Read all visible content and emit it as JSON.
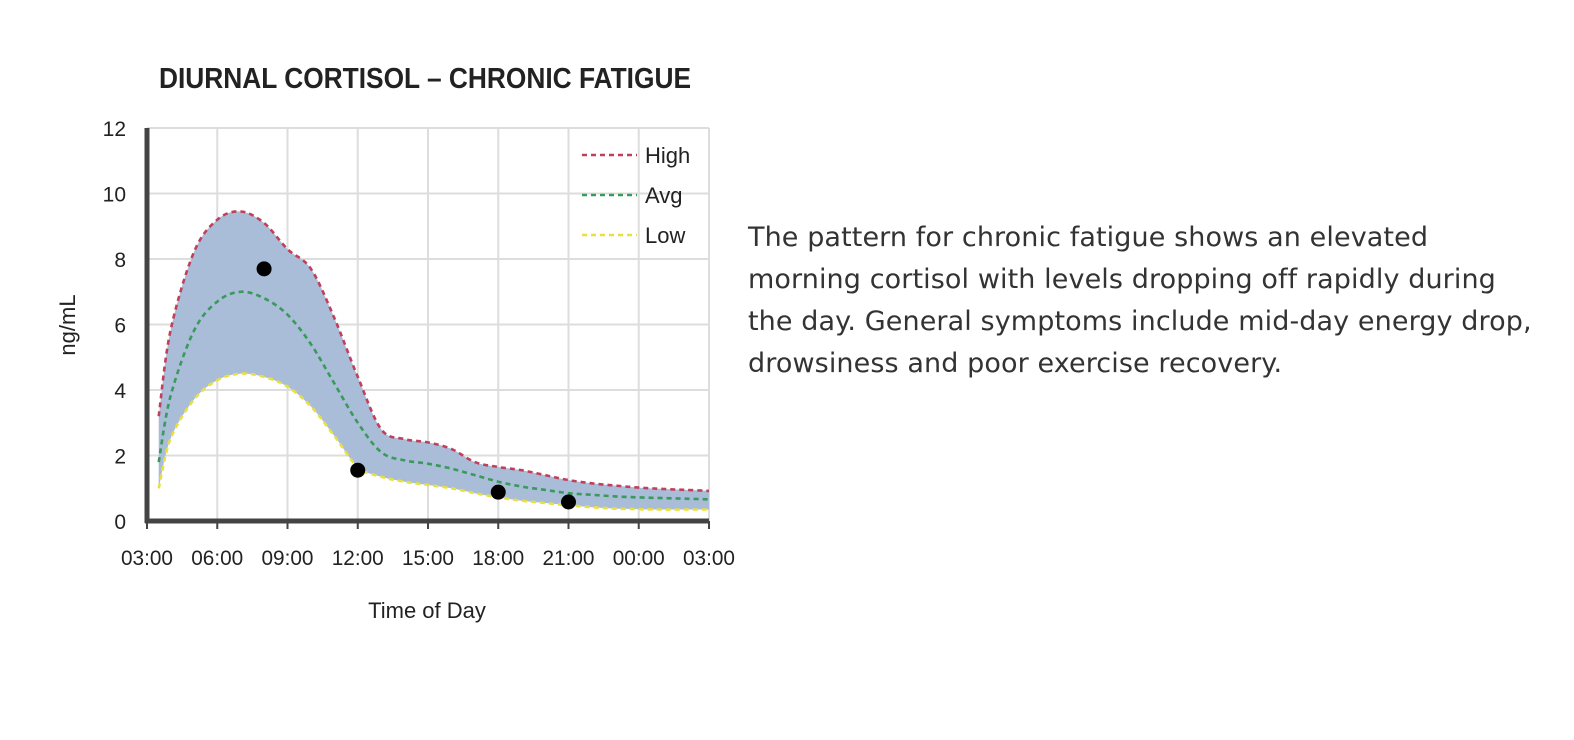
{
  "chart_data": {
    "type": "area",
    "title": "DIURNAL CORTISOL – CHRONIC FATIGUE",
    "xlabel": "Time of Day",
    "ylabel": "ng/mL",
    "x_ticks": [
      "03:00",
      "06:00",
      "09:00",
      "12:00",
      "15:00",
      "18:00",
      "21:00",
      "00:00",
      "03:00"
    ],
    "y_ticks": [
      0,
      2,
      4,
      6,
      8,
      10,
      12
    ],
    "ylim": [
      0,
      12
    ],
    "xlim_hours": [
      3,
      27
    ],
    "grid": true,
    "legend_position": "top-right",
    "band_color": "#a9bcd8",
    "series": [
      {
        "name": "High",
        "color": "#c0405a",
        "style": "dashed",
        "x_hours": [
          3.5,
          4,
          5,
          6,
          7,
          8,
          9,
          10,
          11,
          12,
          13,
          14,
          15,
          16,
          17,
          18,
          19,
          20,
          21,
          22,
          23,
          24,
          25,
          26,
          27
        ],
        "values": [
          3.2,
          5.8,
          8.2,
          9.2,
          9.45,
          9.1,
          8.3,
          7.7,
          6.2,
          4.4,
          2.8,
          2.5,
          2.4,
          2.2,
          1.8,
          1.65,
          1.55,
          1.4,
          1.25,
          1.15,
          1.08,
          1.02,
          0.98,
          0.95,
          0.92
        ]
      },
      {
        "name": "Avg",
        "color": "#3a9a5a",
        "style": "dashed",
        "x_hours": [
          3.5,
          4,
          5,
          6,
          7,
          8,
          9,
          10,
          11,
          12,
          13,
          14,
          15,
          16,
          17,
          18,
          19,
          20,
          21,
          22,
          23,
          24,
          25,
          26,
          27
        ],
        "values": [
          1.8,
          3.8,
          5.8,
          6.7,
          7.0,
          6.8,
          6.3,
          5.4,
          4.2,
          3.0,
          2.1,
          1.85,
          1.75,
          1.6,
          1.4,
          1.2,
          1.05,
          0.95,
          0.85,
          0.8,
          0.75,
          0.72,
          0.7,
          0.68,
          0.66
        ]
      },
      {
        "name": "Low",
        "color": "#e8e040",
        "style": "dashed",
        "x_hours": [
          3.5,
          4,
          5,
          6,
          7,
          8,
          9,
          10,
          11,
          12,
          13,
          14,
          15,
          16,
          17,
          18,
          19,
          20,
          21,
          22,
          23,
          24,
          25,
          26,
          27
        ],
        "values": [
          1.0,
          2.5,
          3.7,
          4.3,
          4.5,
          4.4,
          4.1,
          3.5,
          2.6,
          1.65,
          1.35,
          1.2,
          1.1,
          1.0,
          0.85,
          0.72,
          0.62,
          0.55,
          0.48,
          0.42,
          0.38,
          0.36,
          0.35,
          0.35,
          0.35
        ]
      }
    ],
    "points": {
      "x_hours": [
        8,
        12,
        18,
        21
      ],
      "values": [
        7.7,
        1.55,
        0.88,
        0.58
      ],
      "color": "#000000"
    }
  },
  "description": "The pattern for chronic fatigue shows an elevated morning cortisol with levels dropping off rapidly during the day. General symptoms include mid-day energy drop, drowsiness and poor exercise recovery."
}
